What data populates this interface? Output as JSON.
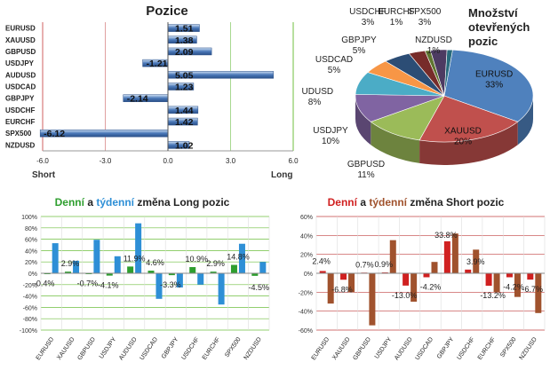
{
  "colors": {
    "bar_blue": "#4a78b8",
    "bar_blue_light": "#cfe0f4",
    "pie_eurusd": "#4f81bd",
    "pie_xauusd": "#c0504d",
    "pie_gbpusd": "#9bbb59",
    "pie_usdjpy": "#8064a2",
    "pie_audusd": "#4bacc6",
    "pie_usdcad": "#f79646",
    "daily_green": "#2e9e2e",
    "weekly_blue": "#2e8fd6",
    "daily_red": "#d02020",
    "weekly_brown": "#a0522d",
    "grid_green": "#6fbf3f",
    "grid_red": "#c04040"
  },
  "chart_data": [
    {
      "type": "bar",
      "orientation": "horizontal",
      "title": "Pozice",
      "categories": [
        "EURUSD",
        "XAUUSD",
        "GBPUSD",
        "USDJPY",
        "AUDUSD",
        "USDCAD",
        "GBPJPY",
        "USDCHF",
        "EURCHF",
        "SPX500",
        "NZDUSD"
      ],
      "values": [
        1.51,
        1.38,
        2.09,
        -1.21,
        5.05,
        1.23,
        -2.14,
        1.44,
        1.42,
        -6.12,
        1.02
      ],
      "value_labels": [
        "1.51",
        "1.38",
        "2.09",
        "-1.21",
        "5.05",
        "1.23",
        "-2.14",
        "1.44",
        "1.42",
        "-6.12",
        "1.02"
      ],
      "xlim": [
        -6.0,
        6.0
      ],
      "xticks": [
        "-6.0",
        "-3.0",
        "0.0",
        "3.0",
        "6.0"
      ],
      "xlabel_left": "Short",
      "xlabel_right": "Long"
    },
    {
      "type": "pie",
      "title": [
        "Množství",
        "otevřených",
        "pozic"
      ],
      "slices": [
        {
          "name": "EURUSD",
          "value": 33,
          "label": "33%"
        },
        {
          "name": "XAUUSD",
          "value": 20,
          "label": "20%"
        },
        {
          "name": "GBPUSD",
          "value": 11,
          "label": "11%"
        },
        {
          "name": "USDJPY",
          "value": 10,
          "label": "10%"
        },
        {
          "name": "AUDUSD",
          "value": 8,
          "label": "8%"
        },
        {
          "name": "USDCAD",
          "value": 5,
          "label": "5%"
        },
        {
          "name": "GBPJPY",
          "value": 5,
          "label": "5%"
        },
        {
          "name": "USDCHF",
          "value": 3,
          "label": "3%"
        },
        {
          "name": "EURCHF",
          "value": 1,
          "label": "1%"
        },
        {
          "name": "SPX500",
          "value": 3,
          "label": "3%"
        },
        {
          "name": "NZDUSD",
          "value": 1,
          "label": "1%"
        }
      ]
    },
    {
      "type": "bar",
      "title_parts": [
        "Denní",
        " a ",
        "týdenní",
        " změna Long pozic"
      ],
      "categories": [
        "EURUSD",
        "XAUUSD",
        "GBPUSD",
        "USDJPY",
        "AUDUSD",
        "USDCAD",
        "GBPJPY",
        "USDCHF",
        "EURCHF",
        "SPX500",
        "NZDUSD"
      ],
      "series": [
        {
          "values": [
            -0.4,
            2.9,
            -0.7,
            -4.1,
            11.9,
            4.6,
            -3.3,
            10.9,
            2.9,
            14.8,
            -4.5
          ]
        },
        {
          "values": [
            53,
            22,
            59,
            30,
            88,
            -45,
            -25,
            -20,
            -55,
            52,
            20
          ]
        }
      ],
      "value_labels": [
        "-0.4%",
        "2.9%",
        "-0.7%",
        "-4.1%",
        "11.9%",
        "4.6%",
        "-3.3%",
        "10.9%",
        "2.9%",
        "14.8%",
        "-4.5%"
      ],
      "ylim": [
        -100,
        100
      ],
      "yticks": [
        "100%",
        "80%",
        "60%",
        "40%",
        "20%",
        "0%",
        "-20%",
        "-40%",
        "-60%",
        "-80%",
        "-100%"
      ]
    },
    {
      "type": "bar",
      "title_parts": [
        "Denní",
        " a ",
        "týdenní",
        " změna Short pozic"
      ],
      "categories": [
        "EURUSD",
        "XAUUSD",
        "GBPUSD",
        "USDJPY",
        "AUDUSD",
        "USDCAD",
        "GBPJPY",
        "USDCHF",
        "EURCHF",
        "SPX500",
        "NZDUSD"
      ],
      "series": [
        {
          "values": [
            2.4,
            -6.8,
            0.7,
            0.9,
            -13.0,
            -4.2,
            33.8,
            3.9,
            -13.2,
            -4.2,
            -6.7
          ]
        },
        {
          "values": [
            -32,
            -20,
            -55,
            35,
            -30,
            12,
            42,
            25,
            -20,
            -25,
            -42
          ]
        }
      ],
      "value_labels": [
        "2.4%",
        "-6.8%",
        "0.7%",
        "0.9%",
        "-13.0%",
        "-4.2%",
        "33.8%",
        "3.9%",
        "-13.2%",
        "-4.2%",
        "-6.7%"
      ],
      "ylim": [
        -60,
        60
      ],
      "yticks": [
        "60%",
        "40%",
        "20%",
        "0%",
        "-20%",
        "-40%",
        "-60%"
      ]
    }
  ]
}
